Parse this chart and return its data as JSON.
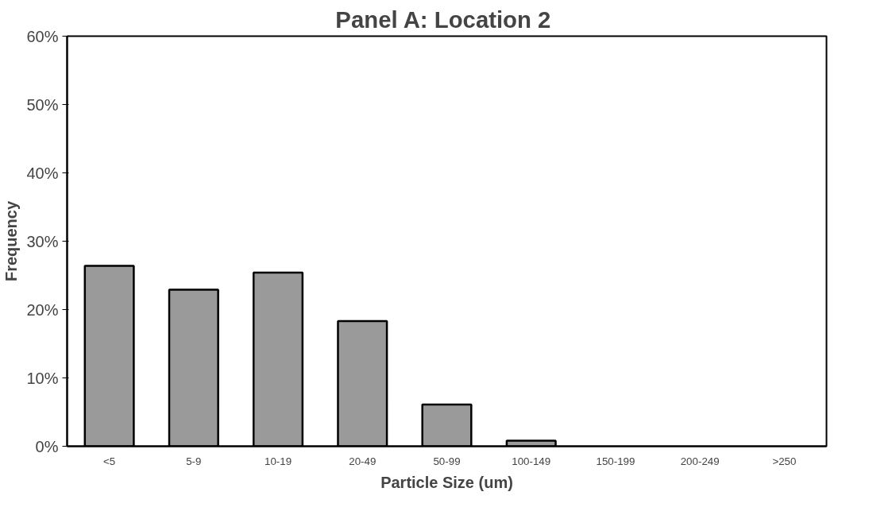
{
  "chart_data": {
    "type": "bar",
    "title": "Panel A:  Location 2",
    "xlabel": "Particle Size (um)",
    "ylabel": "Frequency",
    "categories": [
      "<5",
      "5-9",
      "10-19",
      "20-49",
      "50-99",
      "100-149",
      "150-199",
      "200-249",
      ">250"
    ],
    "values": [
      26.4,
      22.9,
      25.4,
      18.3,
      6.1,
      0.8,
      0,
      0,
      0
    ],
    "color": "#9a9a9a",
    "ylim": [
      0,
      60
    ],
    "yticks": [
      {
        "value": 0,
        "label": "0%"
      },
      {
        "value": 10,
        "label": "10%"
      },
      {
        "value": 20,
        "label": "20%"
      },
      {
        "value": 30,
        "label": "30%"
      },
      {
        "value": 40,
        "label": "40%"
      },
      {
        "value": 50,
        "label": "50%"
      },
      {
        "value": 60,
        "label": "60%"
      }
    ],
    "grid": false
  }
}
